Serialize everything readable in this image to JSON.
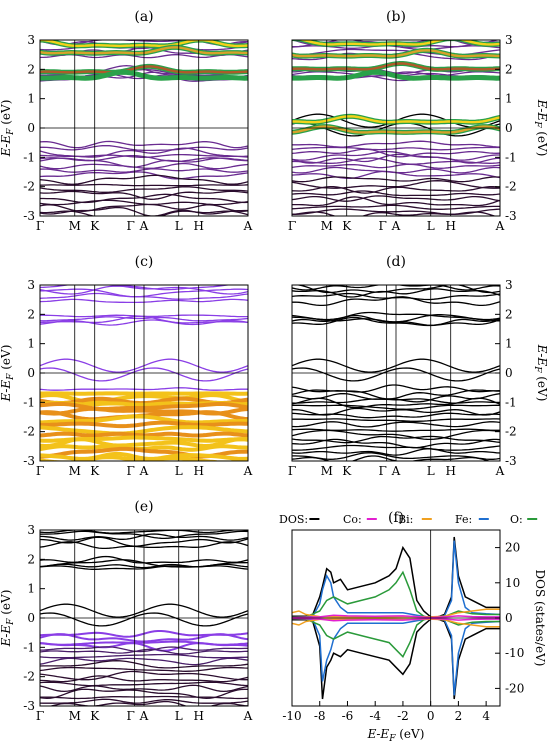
{
  "figure": {
    "panels": [
      "(a)",
      "(b)",
      "(c)",
      "(d)",
      "(e)",
      "(f)"
    ]
  },
  "chart_data": [
    {
      "type": "line",
      "panel": "(a)",
      "ylabel": "E-E_F (eV)",
      "ylim": [
        -3,
        3
      ],
      "yticks": [
        "3",
        "2",
        "1",
        "0",
        "-1",
        "-2",
        "-3"
      ],
      "kpoints": [
        {
          "label": "Γ",
          "k": 0.0
        },
        {
          "label": "M",
          "k": 0.167
        },
        {
          "label": "K",
          "k": 0.263
        },
        {
          "label": "Γ",
          "k": 0.455
        },
        {
          "label": "A",
          "k": 0.5
        },
        {
          "label": "L",
          "k": 0.667
        },
        {
          "label": "H",
          "k": 0.763
        },
        {
          "label": "A",
          "k": 1.0
        }
      ],
      "y_axis_side": "left",
      "highlight": {
        "band_levels": [
          2.85,
          2.6,
          1.95,
          1.75
        ],
        "color_scale": "green-yellow-red"
      },
      "valence_color": "#6a2c91",
      "core_color": "#2b0d2e"
    },
    {
      "type": "line",
      "panel": "(b)",
      "ylabel": "E-E_F (eV)",
      "ylim": [
        -3,
        3
      ],
      "yticks": [
        "3",
        "2",
        "1",
        "0",
        "-1",
        "-2",
        "-3"
      ],
      "kpoints": [
        {
          "label": "Γ",
          "k": 0.0
        },
        {
          "label": "M",
          "k": 0.167
        },
        {
          "label": "K",
          "k": 0.263
        },
        {
          "label": "Γ",
          "k": 0.455
        },
        {
          "label": "A",
          "k": 0.5
        },
        {
          "label": "L",
          "k": 0.667
        },
        {
          "label": "H",
          "k": 0.763
        },
        {
          "label": "A",
          "k": 1.0
        }
      ],
      "y_axis_side": "right",
      "highlight": {
        "band_levels": [
          2.9,
          2.5,
          2.05,
          1.75,
          0.25,
          -0.1
        ],
        "color_scale": "green-yellow-red"
      },
      "valence_color": "#6a2c91",
      "core_color": "#2b0d2e"
    },
    {
      "type": "line",
      "panel": "(c)",
      "ylabel": "E-E_F (eV)",
      "ylim": [
        -3,
        3
      ],
      "yticks": [
        "3",
        "2",
        "1",
        "0",
        "-1",
        "-2",
        "-3"
      ],
      "kpoints": [
        {
          "label": "Γ",
          "k": 0.0
        },
        {
          "label": "M",
          "k": 0.167
        },
        {
          "label": "K",
          "k": 0.263
        },
        {
          "label": "Γ",
          "k": 0.455
        },
        {
          "label": "A",
          "k": 0.5
        },
        {
          "label": "L",
          "k": 0.667
        },
        {
          "label": "H",
          "k": 0.763
        },
        {
          "label": "A",
          "k": 1.0
        }
      ],
      "y_axis_side": "left",
      "highlight": {
        "range": [
          -3,
          -0.7
        ],
        "color_scale": "orange-yellow"
      },
      "band_color": "#8a3ee6"
    },
    {
      "type": "line",
      "panel": "(d)",
      "ylabel": "E-E_F (eV)",
      "ylim": [
        -3,
        3
      ],
      "yticks": [
        "3",
        "2",
        "1",
        "0",
        "-1",
        "-2",
        "-3"
      ],
      "kpoints": [
        {
          "label": "Γ",
          "k": 0.0
        },
        {
          "label": "M",
          "k": 0.167
        },
        {
          "label": "K",
          "k": 0.263
        },
        {
          "label": "Γ",
          "k": 0.455
        },
        {
          "label": "A",
          "k": 0.5
        },
        {
          "label": "L",
          "k": 0.667
        },
        {
          "label": "H",
          "k": 0.763
        },
        {
          "label": "A",
          "k": 1.0
        }
      ],
      "y_axis_side": "right",
      "band_color": "#000000"
    },
    {
      "type": "line",
      "panel": "(e)",
      "ylabel": "E-E_F (eV)",
      "ylim": [
        -3,
        3
      ],
      "yticks": [
        "3",
        "2",
        "1",
        "0",
        "-1",
        "-2",
        "-3"
      ],
      "kpoints": [
        {
          "label": "Γ",
          "k": 0.0
        },
        {
          "label": "M",
          "k": 0.167
        },
        {
          "label": "K",
          "k": 0.263
        },
        {
          "label": "Γ",
          "k": 0.455
        },
        {
          "label": "A",
          "k": 0.5
        },
        {
          "label": "L",
          "k": 0.667
        },
        {
          "label": "H",
          "k": 0.763
        },
        {
          "label": "A",
          "k": 1.0
        }
      ],
      "y_axis_side": "left",
      "highlight": {
        "range": [
          -1.0,
          -0.6
        ],
        "color": "#8a3ee6"
      },
      "band_color": "#000000"
    },
    {
      "type": "line",
      "panel": "(f)",
      "xlabel": "E-E_F (eV)",
      "ylabel": "DOS (states/eV)",
      "xlim": [
        -10,
        5
      ],
      "ylim": [
        -25,
        25
      ],
      "xticks": [
        "-10",
        "-8",
        "-6",
        "-4",
        "-2",
        "0",
        "2",
        "4"
      ],
      "yticks": [
        "20",
        "10",
        "0",
        "-10",
        "-20"
      ],
      "legend": [
        "DOS:",
        "Co:",
        "Bi:",
        "Fe:",
        "O:"
      ],
      "legend_placement": "top",
      "series": [
        {
          "name": "DOS:",
          "color": "#000000",
          "x": [
            -10,
            -9,
            -8.5,
            -8,
            -7.8,
            -7.5,
            -7.2,
            -7,
            -6.5,
            -6,
            -5,
            -4,
            -3,
            -2.5,
            -2,
            -1.5,
            -1,
            -0.5,
            0,
            0.5,
            1,
            1.5,
            1.7,
            2,
            2.5,
            3,
            3.5,
            4,
            4.5,
            5
          ],
          "y_up": [
            0.5,
            0.5,
            1,
            6,
            9,
            14,
            13,
            10,
            11,
            8,
            9,
            10,
            12,
            14,
            20,
            17,
            5,
            2,
            0.3,
            0.3,
            1,
            6,
            23,
            12,
            6,
            5,
            4,
            3,
            3,
            3
          ],
          "y_down": [
            -0.5,
            -0.5,
            -1,
            -8,
            -23,
            -14,
            -12,
            -10,
            -11,
            -9,
            -10,
            -11,
            -12,
            -14,
            -16,
            -13,
            -4,
            -2,
            -0.3,
            -0.3,
            -1,
            -6,
            -23,
            -12,
            -6,
            -5,
            -4,
            -3,
            -3,
            -3
          ]
        },
        {
          "name": "Fe:",
          "color": "#1f6fd0",
          "x": [
            -10,
            -9,
            -8.5,
            -8,
            -7.8,
            -7.5,
            -7.2,
            -7,
            -6.5,
            -6,
            -5,
            -4,
            -3,
            -2,
            -1,
            0,
            1,
            1.5,
            1.7,
            2,
            2.5,
            3,
            4,
            5
          ],
          "y_up": [
            0.1,
            0.2,
            0.5,
            4,
            8,
            12,
            10,
            6,
            3,
            1.5,
            1.5,
            1.5,
            1.5,
            1.5,
            0.8,
            0.1,
            0.6,
            5,
            22,
            10,
            3,
            1.5,
            1.2,
            1
          ],
          "y_down": [
            -0.1,
            -0.2,
            -0.5,
            -5,
            -18,
            -12,
            -9,
            -6,
            -3,
            -1.5,
            -1.5,
            -1.5,
            -1.5,
            -1.5,
            -0.8,
            -0.1,
            -0.6,
            -5,
            -22,
            -10,
            -3,
            -1.5,
            -1.2,
            -1
          ]
        },
        {
          "name": "O:",
          "color": "#2a9a3a",
          "x": [
            -10,
            -9,
            -8,
            -7.5,
            -7,
            -6.5,
            -6,
            -5,
            -4,
            -3,
            -2.5,
            -2,
            -1.5,
            -1,
            -0.5,
            0,
            1,
            2,
            3,
            4,
            5
          ],
          "y_up": [
            0.2,
            0.3,
            2,
            5,
            6,
            5,
            4,
            5,
            6,
            8,
            10,
            13,
            8,
            2,
            0.5,
            0.1,
            0.4,
            2,
            1.2,
            1,
            1
          ],
          "y_down": [
            -0.2,
            -0.3,
            -2,
            -5,
            -6,
            -5,
            -4,
            -5,
            -6,
            -7,
            -9,
            -11,
            -7,
            -2,
            -0.5,
            -0.1,
            -0.4,
            -2,
            -1.2,
            -1,
            -1
          ]
        },
        {
          "name": "Bi:",
          "color": "#f0a020",
          "x": [
            -10,
            -9.5,
            -9,
            -8,
            -6,
            -4,
            -2,
            -1,
            0,
            1,
            2,
            3,
            4,
            5
          ],
          "y_up": [
            1.5,
            2,
            1,
            0.4,
            0.3,
            0.3,
            0.4,
            0.4,
            0.3,
            0.5,
            1.5,
            2,
            2.5,
            2.5
          ],
          "y_down": [
            -1.5,
            -2,
            -1,
            -0.4,
            -0.3,
            -0.3,
            -0.4,
            -0.4,
            -0.3,
            -0.5,
            -1.5,
            -2,
            -2.5,
            -2.5
          ]
        },
        {
          "name": "Co:",
          "color": "#e21fd0",
          "x": [
            -10,
            -8,
            -7,
            -6,
            -4,
            -2,
            -1,
            0,
            1,
            2,
            3,
            4,
            5
          ],
          "y_up": [
            0.1,
            0.3,
            0.8,
            0.6,
            0.5,
            0.6,
            0.4,
            0.1,
            0.3,
            0.6,
            0.4,
            0.3,
            0.3
          ],
          "y_down": [
            -0.1,
            -0.3,
            -0.8,
            -0.6,
            -0.5,
            -0.6,
            -0.4,
            -0.1,
            -0.3,
            -0.6,
            -0.4,
            -0.3,
            -0.3
          ]
        }
      ]
    }
  ]
}
